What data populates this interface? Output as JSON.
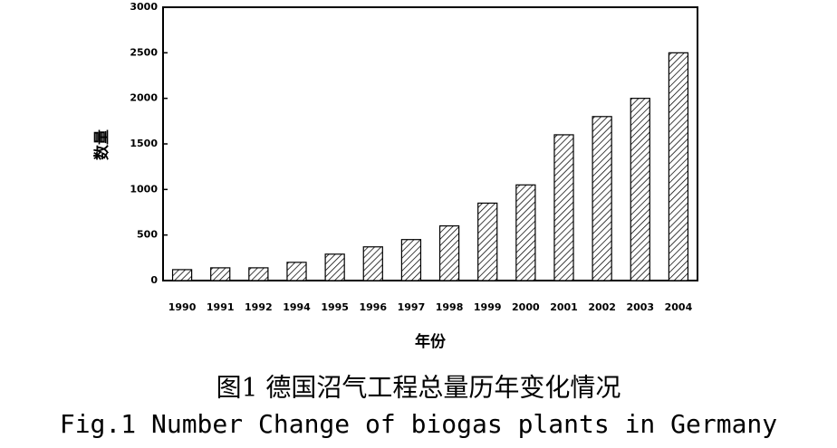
{
  "chart_data": {
    "type": "bar",
    "title": "图1 德国沼气工程总量历年变化情况",
    "subtitle": "Fig.1 Number Change of biogas plants in Germany",
    "x_label": "年份",
    "y_label": "数量",
    "categories": [
      "1990",
      "1991",
      "1992",
      "1994",
      "1995",
      "1996",
      "1997",
      "1998",
      "1999",
      "2000",
      "2001",
      "2002",
      "2003",
      "2004"
    ],
    "values": [
      120,
      140,
      140,
      200,
      290,
      370,
      450,
      600,
      850,
      1050,
      1600,
      1800,
      2000,
      2500
    ],
    "color": "#000000",
    "ylim": [
      0,
      3000
    ],
    "yticks": [
      0,
      500,
      1000,
      1500,
      2000,
      2500,
      3000
    ],
    "grid": false
  }
}
